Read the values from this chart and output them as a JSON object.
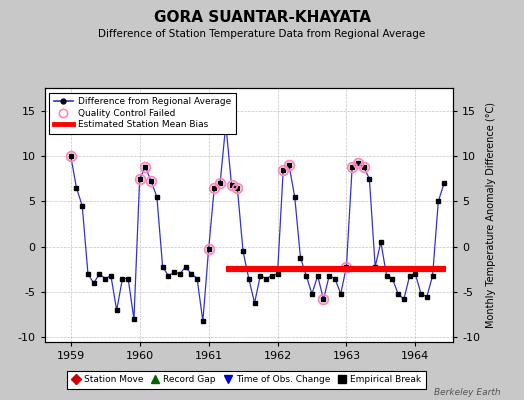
{
  "title": "GORA SUANTAR-KHAYATA",
  "subtitle": "Difference of Station Temperature Data from Regional Average",
  "ylabel": "Monthly Temperature Anomaly Difference (°C)",
  "xlabel_years": [
    1959,
    1960,
    1961,
    1962,
    1963,
    1964
  ],
  "xlim": [
    1958.62,
    1964.55
  ],
  "ylim": [
    -10.5,
    17.5
  ],
  "yticks": [
    -10,
    -5,
    0,
    5,
    10,
    15
  ],
  "mean_bias": -2.5,
  "background_color": "#c8c8c8",
  "plot_bg_color": "#ffffff",
  "grid_color": "#aaaaaa",
  "line_color": "#3333cc",
  "bias_color": "#ff0000",
  "marker_color": "#000000",
  "qc_color": "#ff88bb",
  "data_x": [
    1959.0,
    1959.083,
    1959.167,
    1959.25,
    1959.333,
    1959.417,
    1959.5,
    1959.583,
    1959.667,
    1959.75,
    1959.833,
    1959.917,
    1960.0,
    1960.083,
    1960.167,
    1960.25,
    1960.333,
    1960.417,
    1960.5,
    1960.583,
    1960.667,
    1960.75,
    1960.833,
    1960.917,
    1961.0,
    1961.083,
    1961.167,
    1961.25,
    1961.333,
    1961.417,
    1961.5,
    1961.583,
    1961.667,
    1961.75,
    1961.833,
    1961.917,
    1962.0,
    1962.083,
    1962.167,
    1962.25,
    1962.333,
    1962.417,
    1962.5,
    1962.583,
    1962.667,
    1962.75,
    1962.833,
    1962.917,
    1963.0,
    1963.083,
    1963.167,
    1963.25,
    1963.333,
    1963.417,
    1963.5,
    1963.583,
    1963.667,
    1963.75,
    1963.833,
    1963.917,
    1964.0,
    1964.083,
    1964.167,
    1964.25,
    1964.333,
    1964.417
  ],
  "data_y": [
    10.0,
    6.5,
    4.5,
    -3.0,
    -4.0,
    -3.0,
    -3.5,
    -3.2,
    -7.0,
    -3.5,
    -3.5,
    -8.0,
    7.5,
    8.8,
    7.2,
    5.5,
    -2.2,
    -3.2,
    -2.8,
    -3.0,
    -2.2,
    -3.0,
    -3.5,
    -8.2,
    -0.3,
    6.5,
    7.0,
    13.5,
    6.8,
    6.5,
    -0.5,
    -3.5,
    -6.2,
    -3.2,
    -3.5,
    -3.2,
    -3.0,
    8.5,
    9.0,
    5.5,
    -1.2,
    -3.2,
    -5.2,
    -3.2,
    -5.8,
    -3.2,
    -3.5,
    -5.2,
    -2.2,
    8.8,
    9.2,
    8.8,
    7.5,
    -2.2,
    0.5,
    -3.2,
    -3.5,
    -5.2,
    -5.8,
    -3.2,
    -3.0,
    -5.2,
    -5.5,
    -3.2,
    5.0,
    7.0
  ],
  "qc_failed_indices": [
    0,
    12,
    13,
    14,
    24,
    25,
    26,
    27,
    28,
    29,
    37,
    38,
    44,
    48,
    49,
    50,
    51
  ],
  "bias_x_start": 1961.25,
  "bias_x_end": 1964.45,
  "legend_items": [
    {
      "label": "Difference from Regional Average",
      "color": "#3333cc",
      "type": "line"
    },
    {
      "label": "Quality Control Failed",
      "color": "#ff88bb",
      "type": "circle"
    },
    {
      "label": "Estimated Station Mean Bias",
      "color": "#ff0000",
      "type": "line"
    }
  ],
  "bottom_legend_items": [
    {
      "label": "Station Move",
      "color": "#cc0000",
      "marker": "D"
    },
    {
      "label": "Record Gap",
      "color": "#006600",
      "marker": "^"
    },
    {
      "label": "Time of Obs. Change",
      "color": "#0000cc",
      "marker": "v"
    },
    {
      "label": "Empirical Break",
      "color": "#000000",
      "marker": "s"
    }
  ],
  "watermark": "Berkeley Earth"
}
